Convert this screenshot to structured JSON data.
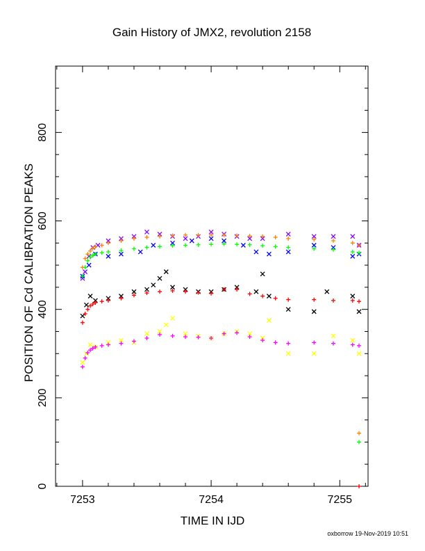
{
  "chart_data": {
    "type": "scatter",
    "title": "Gain History of JMX2, revolution 2158",
    "xlabel": "TIME IN IJD",
    "ylabel": "POSITION OF Cd CALIBRATION PEAKS",
    "xlim": [
      7252.79,
      7255.22
    ],
    "ylim": [
      0,
      950
    ],
    "x_ticks": [
      7253,
      7254,
      7255
    ],
    "x_tick_labels": [
      "7253",
      "7254",
      "7255"
    ],
    "y_ticks": [
      0,
      200,
      400,
      600,
      800
    ],
    "y_tick_labels": [
      "0",
      "200",
      "400",
      "600",
      "800"
    ],
    "grid": false,
    "legend": "none",
    "series": [
      {
        "color": "#8000ff",
        "marker": "x",
        "x": [
          7253.0,
          7253.02,
          7253.05,
          7253.08,
          7253.12,
          7253.2,
          7253.3,
          7253.4,
          7253.5,
          7253.6,
          7253.7,
          7253.8,
          7253.9,
          7254.0,
          7254.1,
          7254.2,
          7254.3,
          7254.4,
          7254.6,
          7254.8,
          7254.95,
          7255.1,
          7255.15
        ],
        "y": [
          470,
          485,
          520,
          540,
          545,
          555,
          560,
          565,
          575,
          570,
          565,
          560,
          565,
          575,
          570,
          565,
          560,
          560,
          570,
          565,
          565,
          565,
          545
        ]
      },
      {
        "color": "#0000ff",
        "marker": "x",
        "x": [
          7253.0,
          7253.05,
          7253.1,
          7253.2,
          7253.3,
          7253.45,
          7253.55,
          7253.7,
          7253.85,
          7254.0,
          7254.1,
          7254.25,
          7254.35,
          7254.45,
          7254.6,
          7254.8,
          7254.95,
          7255.1,
          7255.15
        ],
        "y": [
          475,
          500,
          525,
          520,
          525,
          530,
          545,
          550,
          555,
          560,
          555,
          545,
          530,
          525,
          530,
          545,
          540,
          520,
          525
        ]
      },
      {
        "color": "#ff8000",
        "marker": "+",
        "x": [
          7253.0,
          7253.02,
          7253.04,
          7253.06,
          7253.08,
          7253.1,
          7253.15,
          7253.2,
          7253.3,
          7253.4,
          7253.5,
          7253.6,
          7253.7,
          7253.8,
          7253.9,
          7254.0,
          7254.1,
          7254.2,
          7254.3,
          7254.4,
          7254.5,
          7254.6,
          7254.8,
          7254.95,
          7255.1,
          7255.15,
          7255.15
        ],
        "y": [
          495,
          515,
          525,
          532,
          538,
          542,
          545,
          550,
          555,
          560,
          563,
          565,
          567,
          568,
          568,
          568,
          568,
          567,
          566,
          565,
          563,
          560,
          558,
          555,
          550,
          545,
          120
        ]
      },
      {
        "color": "#00ff00",
        "marker": "+",
        "x": [
          7253.0,
          7253.02,
          7253.04,
          7253.06,
          7253.08,
          7253.1,
          7253.15,
          7253.2,
          7253.3,
          7253.4,
          7253.5,
          7253.6,
          7253.7,
          7253.8,
          7253.9,
          7254.0,
          7254.1,
          7254.2,
          7254.3,
          7254.4,
          7254.5,
          7254.6,
          7254.8,
          7254.95,
          7255.1,
          7255.15,
          7255.15
        ],
        "y": [
          475,
          495,
          510,
          518,
          522,
          525,
          528,
          530,
          533,
          537,
          540,
          542,
          544,
          545,
          546,
          547,
          548,
          547,
          546,
          544,
          542,
          540,
          537,
          535,
          530,
          528,
          100
        ]
      },
      {
        "color": "#000000",
        "marker": "x",
        "x": [
          7253.0,
          7253.03,
          7253.06,
          7253.1,
          7253.2,
          7253.3,
          7253.4,
          7253.5,
          7253.55,
          7253.6,
          7253.65,
          7253.7,
          7253.8,
          7253.9,
          7254.0,
          7254.1,
          7254.2,
          7254.35,
          7254.4,
          7254.45,
          7254.6,
          7254.8,
          7254.9,
          7255.1,
          7255.15
        ],
        "y": [
          385,
          410,
          430,
          420,
          425,
          430,
          440,
          445,
          455,
          470,
          485,
          450,
          445,
          440,
          440,
          445,
          450,
          440,
          480,
          430,
          400,
          395,
          440,
          430,
          395
        ]
      },
      {
        "color": "#ff0000",
        "marker": "+",
        "x": [
          7253.0,
          7253.02,
          7253.04,
          7253.06,
          7253.08,
          7253.1,
          7253.15,
          7253.2,
          7253.3,
          7253.4,
          7253.5,
          7253.6,
          7253.7,
          7253.8,
          7253.9,
          7254.0,
          7254.1,
          7254.2,
          7254.3,
          7254.4,
          7254.5,
          7254.6,
          7254.8,
          7254.95,
          7255.1,
          7255.15,
          7255.15
        ],
        "y": [
          370,
          390,
          400,
          408,
          412,
          415,
          418,
          420,
          425,
          432,
          437,
          440,
          442,
          440,
          438,
          436,
          445,
          445,
          435,
          430,
          425,
          422,
          422,
          420,
          420,
          418,
          0
        ]
      },
      {
        "color": "#ffff00",
        "marker": "x",
        "x": [
          7253.0,
          7253.03,
          7253.06,
          7253.1,
          7253.2,
          7253.3,
          7253.4,
          7253.5,
          7253.6,
          7253.65,
          7253.7,
          7253.8,
          7253.9,
          7254.0,
          7254.1,
          7254.2,
          7254.3,
          7254.4,
          7254.45,
          7254.6,
          7254.8,
          7254.95,
          7255.1,
          7255.15
        ],
        "y": [
          280,
          300,
          320,
          315,
          325,
          330,
          325,
          345,
          350,
          365,
          380,
          345,
          340,
          335,
          345,
          350,
          345,
          335,
          375,
          300,
          300,
          340,
          330,
          300
        ]
      },
      {
        "color": "#ff00ff",
        "marker": "+",
        "x": [
          7253.0,
          7253.02,
          7253.04,
          7253.06,
          7253.08,
          7253.1,
          7253.15,
          7253.2,
          7253.3,
          7253.4,
          7253.5,
          7253.6,
          7253.7,
          7253.8,
          7253.9,
          7254.0,
          7254.1,
          7254.2,
          7254.3,
          7254.4,
          7254.5,
          7254.6,
          7254.8,
          7254.95,
          7255.1,
          7255.15
        ],
        "y": [
          270,
          290,
          302,
          308,
          312,
          315,
          318,
          320,
          323,
          328,
          335,
          343,
          340,
          338,
          337,
          335,
          345,
          347,
          338,
          330,
          325,
          323,
          325,
          323,
          320,
          318
        ]
      }
    ]
  },
  "footer": "oxborrow 19-Nov-2019 10:51"
}
